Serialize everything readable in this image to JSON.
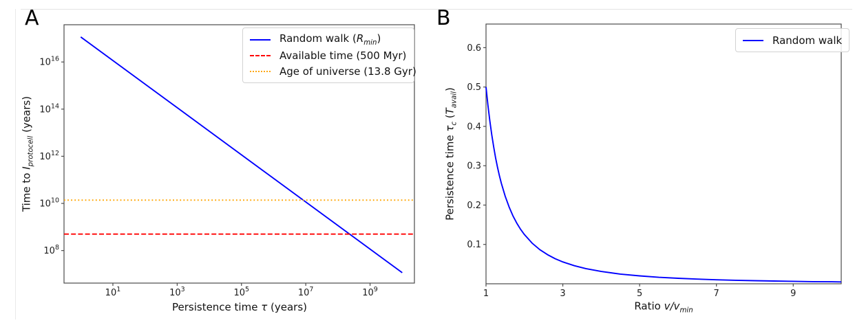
{
  "page": {
    "background": "#ffffff"
  },
  "colors": {
    "random_walk": "#0000ff",
    "available_time": "#ff0000",
    "age_of_universe": "#ffa500",
    "spine": "#4a4a4a",
    "tick_text": "#1a1a1a"
  },
  "panels": [
    {
      "label": "A",
      "xlabel_parts": [
        {
          "t": "Persistence time ",
          "s": ""
        },
        {
          "t": "τ",
          "s": "i"
        },
        {
          "t": " (years)",
          "s": ""
        }
      ],
      "ylabel_parts": [
        {
          "t": "Time to ",
          "s": ""
        },
        {
          "t": "I",
          "s": "i"
        },
        {
          "t": "protocell",
          "s": "isub"
        },
        {
          "t": " (years)",
          "s": ""
        }
      ],
      "legend": [
        {
          "parts": [
            {
              "t": "Random walk (",
              "s": ""
            },
            {
              "t": "R",
              "s": "i"
            },
            {
              "t": "min",
              "s": "isub"
            },
            {
              "t": ")",
              "s": ""
            }
          ],
          "color": "#0000ff",
          "dash": "solid"
        },
        {
          "parts": [
            {
              "t": "Available time (500 Myr)",
              "s": ""
            }
          ],
          "color": "#ff0000",
          "dash": "dashed"
        },
        {
          "parts": [
            {
              "t": "Age of universe (13.8 Gyr)",
              "s": ""
            }
          ],
          "color": "#ffa500",
          "dash": "dotted"
        }
      ]
    },
    {
      "label": "B",
      "xlabel_parts": [
        {
          "t": "Ratio ",
          "s": ""
        },
        {
          "t": "v/v",
          "s": "i"
        },
        {
          "t": "min",
          "s": "isub"
        }
      ],
      "ylabel_parts": [
        {
          "t": "Persistence time ",
          "s": ""
        },
        {
          "t": "τ",
          "s": "i"
        },
        {
          "t": "c",
          "s": "isub"
        },
        {
          "t": " (",
          "s": ""
        },
        {
          "t": "T",
          "s": "i"
        },
        {
          "t": "avail",
          "s": "isub"
        },
        {
          "t": ")",
          "s": ""
        }
      ],
      "legend": [
        {
          "parts": [
            {
              "t": "Random walk",
              "s": ""
            }
          ],
          "color": "#0000ff",
          "dash": "solid"
        }
      ]
    }
  ],
  "chart_data": [
    {
      "type": "line",
      "title": "",
      "xlabel": "Persistence time τ (years)",
      "ylabel": "Time to I_protocell (years)",
      "x_scale": "log",
      "y_scale": "log",
      "xlim_log": [
        -0.52,
        10.38
      ],
      "ylim_log": [
        6.62,
        17.58
      ],
      "x_tick_exponents": [
        1,
        3,
        5,
        7,
        9
      ],
      "y_tick_exponents": [
        8,
        10,
        12,
        14,
        16
      ],
      "grid": false,
      "legend_position": "upper right",
      "series": [
        {
          "name": "Random walk (R_min)",
          "color": "#0000ff",
          "style": "solid",
          "points": [
            [
              1,
              1.15e+17
            ],
            [
              10000000000.0,
              11500000.0
            ]
          ]
        },
        {
          "name": "Available time (500 Myr)",
          "color": "#ff0000",
          "style": "dashed",
          "hline": 500000000.0
        },
        {
          "name": "Age of universe (13.8 Gyr)",
          "color": "#ffa500",
          "style": "dotted",
          "hline": 13800000000.0
        }
      ]
    },
    {
      "type": "line",
      "title": "",
      "xlabel": "Ratio v/v_min",
      "ylabel": "Persistence time τ_c (T_avail)",
      "x_scale": "linear",
      "y_scale": "linear",
      "xlim": [
        1,
        10.25
      ],
      "ylim": [
        0,
        0.66
      ],
      "x_ticks": [
        1,
        3,
        5,
        7,
        9
      ],
      "y_ticks": [
        0.1,
        0.2,
        0.3,
        0.4,
        0.5,
        0.6
      ],
      "grid": false,
      "legend_position": "upper right",
      "series": [
        {
          "name": "Random walk",
          "color": "#0000ff",
          "style": "solid",
          "formula": "tau_c = 0.5 / (v/v_min)^2",
          "points": [
            [
              1,
              0.5
            ],
            [
              1.05,
              0.4535
            ],
            [
              1.1,
              0.4132
            ],
            [
              1.15,
              0.3781
            ],
            [
              1.2,
              0.3472
            ],
            [
              1.25,
              0.32
            ],
            [
              1.3,
              0.2959
            ],
            [
              1.35,
              0.2743
            ],
            [
              1.4,
              0.2551
            ],
            [
              1.5,
              0.2222
            ],
            [
              1.6,
              0.1953
            ],
            [
              1.7,
              0.173
            ],
            [
              1.8,
              0.1543
            ],
            [
              1.9,
              0.1385
            ],
            [
              2,
              0.125
            ],
            [
              2.2,
              0.1033
            ],
            [
              2.4,
              0.0868
            ],
            [
              2.6,
              0.074
            ],
            [
              2.8,
              0.0638
            ],
            [
              3,
              0.0556
            ],
            [
              3.3,
              0.0459
            ],
            [
              3.6,
              0.0386
            ],
            [
              4,
              0.0313
            ],
            [
              4.5,
              0.0247
            ],
            [
              5,
              0.02
            ],
            [
              5.5,
              0.0165
            ],
            [
              6,
              0.0139
            ],
            [
              6.5,
              0.0118
            ],
            [
              7,
              0.0102
            ],
            [
              7.5,
              0.0089
            ],
            [
              8,
              0.0078
            ],
            [
              8.5,
              0.0069
            ],
            [
              9,
              0.0062
            ],
            [
              9.5,
              0.0055
            ],
            [
              10,
              0.005
            ],
            [
              10.25,
              0.0048
            ]
          ]
        }
      ]
    }
  ]
}
